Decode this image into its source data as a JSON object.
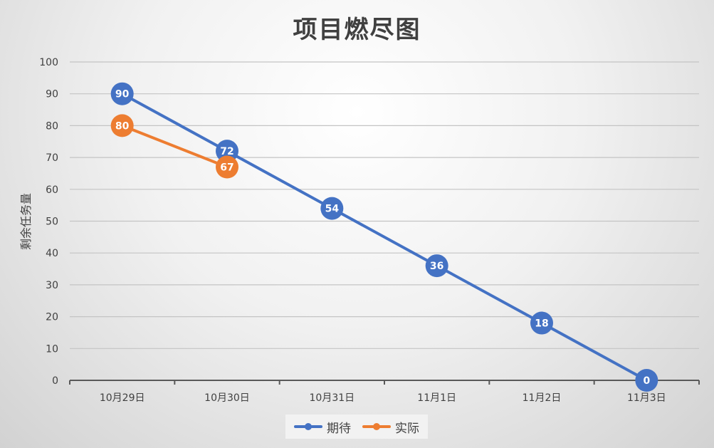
{
  "chart_data": {
    "type": "line",
    "title": "项目燃尽图",
    "xlabel": "",
    "ylabel": "剩余任务量",
    "categories": [
      "10月29日",
      "10月30日",
      "10月31日",
      "11月1日",
      "11月2日",
      "11月3日"
    ],
    "ylim": [
      0,
      100
    ],
    "yticks": [
      0,
      10,
      20,
      30,
      40,
      50,
      60,
      70,
      80,
      90,
      100
    ],
    "grid": true,
    "legend_position": "bottom",
    "series": [
      {
        "name": "期待",
        "color": "#4472C4",
        "values": [
          90,
          72,
          54,
          36,
          18,
          0
        ]
      },
      {
        "name": "实际",
        "color": "#ED7D31",
        "values": [
          80,
          67,
          null,
          null,
          null,
          null
        ]
      }
    ]
  }
}
